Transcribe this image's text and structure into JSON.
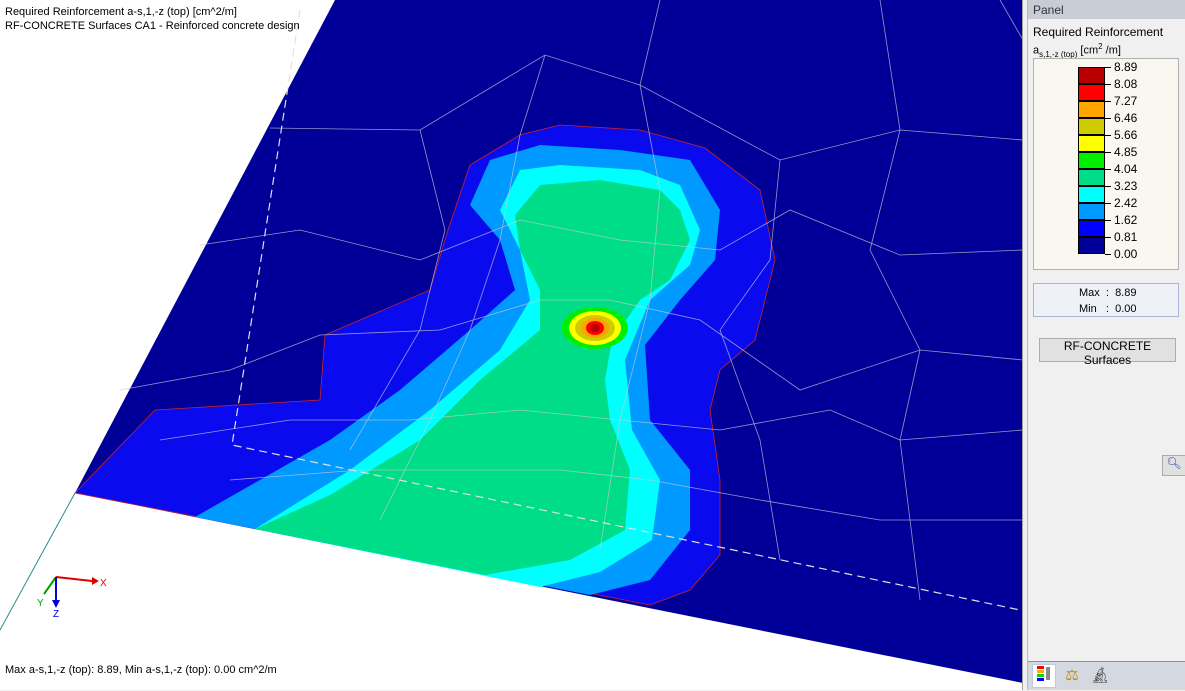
{
  "viewport": {
    "title_line1": "Required Reinforcement a-s,1,-z (top) [cm^2/m]",
    "title_line2": "RF-CONCRETE Surfaces CA1 - Reinforced concrete design",
    "status": "Max a-s,1,-z (top): 8.89, Min a-s,1,-z (top): 0.00 cm^2/m",
    "axes": {
      "x": "X",
      "y": "Y",
      "z": "Z"
    }
  },
  "panel": {
    "header": "Panel",
    "legend_title": "Required Reinforcement",
    "legend_symbol": "a",
    "legend_subscript": "s,1,-z (top)",
    "legend_unit": "[cm",
    "legend_unit_exp": "2",
    "legend_unit_end": " /m]",
    "legend": [
      {
        "value": "8.89",
        "color": "#b80000"
      },
      {
        "value": "8.08",
        "color": "#ff0000"
      },
      {
        "value": "7.27",
        "color": "#ffa500"
      },
      {
        "value": "6.46",
        "color": "#cccc00"
      },
      {
        "value": "5.66",
        "color": "#ffff00"
      },
      {
        "value": "4.85",
        "color": "#00ee00"
      },
      {
        "value": "4.04",
        "color": "#00dd88"
      },
      {
        "value": "3.23",
        "color": "#00ffff"
      },
      {
        "value": "2.42",
        "color": "#0099ff"
      },
      {
        "value": "1.62",
        "color": "#0000ff"
      },
      {
        "value": "0.81",
        "color": "#000099"
      },
      {
        "value": "0.00",
        "color": null
      }
    ],
    "max_label": "Max",
    "max_value": "8.89",
    "min_label": "Min",
    "min_value": "0.00",
    "button": "RF-CONCRETE Surfaces",
    "tabs": [
      "color-scale-icon",
      "balance-icon",
      "microscope-icon"
    ]
  }
}
